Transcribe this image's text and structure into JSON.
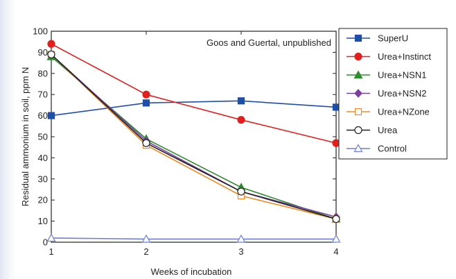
{
  "chart_data": {
    "type": "line",
    "x": [
      1,
      2,
      3,
      4
    ],
    "xlabel": "Weeks of incubation",
    "ylabel": "Residual ammonium in soil, ppm N",
    "xlim": [
      1,
      4
    ],
    "ylim": [
      0,
      100
    ],
    "xticks": [
      1,
      2,
      3,
      4
    ],
    "yticks": [
      0,
      10,
      20,
      30,
      40,
      50,
      60,
      70,
      80,
      90,
      100
    ],
    "annotation": "Goos and Guertal, unpublished",
    "legend_position": "right",
    "grid": false,
    "series": [
      {
        "name": "SuperU",
        "color": "#1f4ea8",
        "marker": "square",
        "fill": true,
        "values": [
          60,
          66,
          67,
          64
        ]
      },
      {
        "name": "Urea+Instinct",
        "color": "#e0201f",
        "marker": "circle",
        "fill": true,
        "values": [
          94,
          70,
          58,
          47
        ]
      },
      {
        "name": "Urea+NSN1",
        "color": "#2e8b2e",
        "marker": "triangle",
        "fill": true,
        "values": [
          88,
          49,
          26,
          11
        ]
      },
      {
        "name": "Urea+NSN2",
        "color": "#7b3fa0",
        "marker": "diamond",
        "fill": true,
        "values": [
          89,
          48,
          24,
          12
        ]
      },
      {
        "name": "Urea+NZone",
        "color": "#f08a24",
        "marker": "square",
        "fill": false,
        "values": [
          89,
          46,
          22,
          11
        ]
      },
      {
        "name": "Urea",
        "color": "#222222",
        "marker": "circle",
        "fill": false,
        "values": [
          89,
          47,
          24,
          11
        ]
      },
      {
        "name": "Control",
        "color": "#6f7fd6",
        "marker": "triangle",
        "fill": false,
        "values": [
          2,
          1.5,
          1.5,
          1.5
        ]
      }
    ]
  }
}
